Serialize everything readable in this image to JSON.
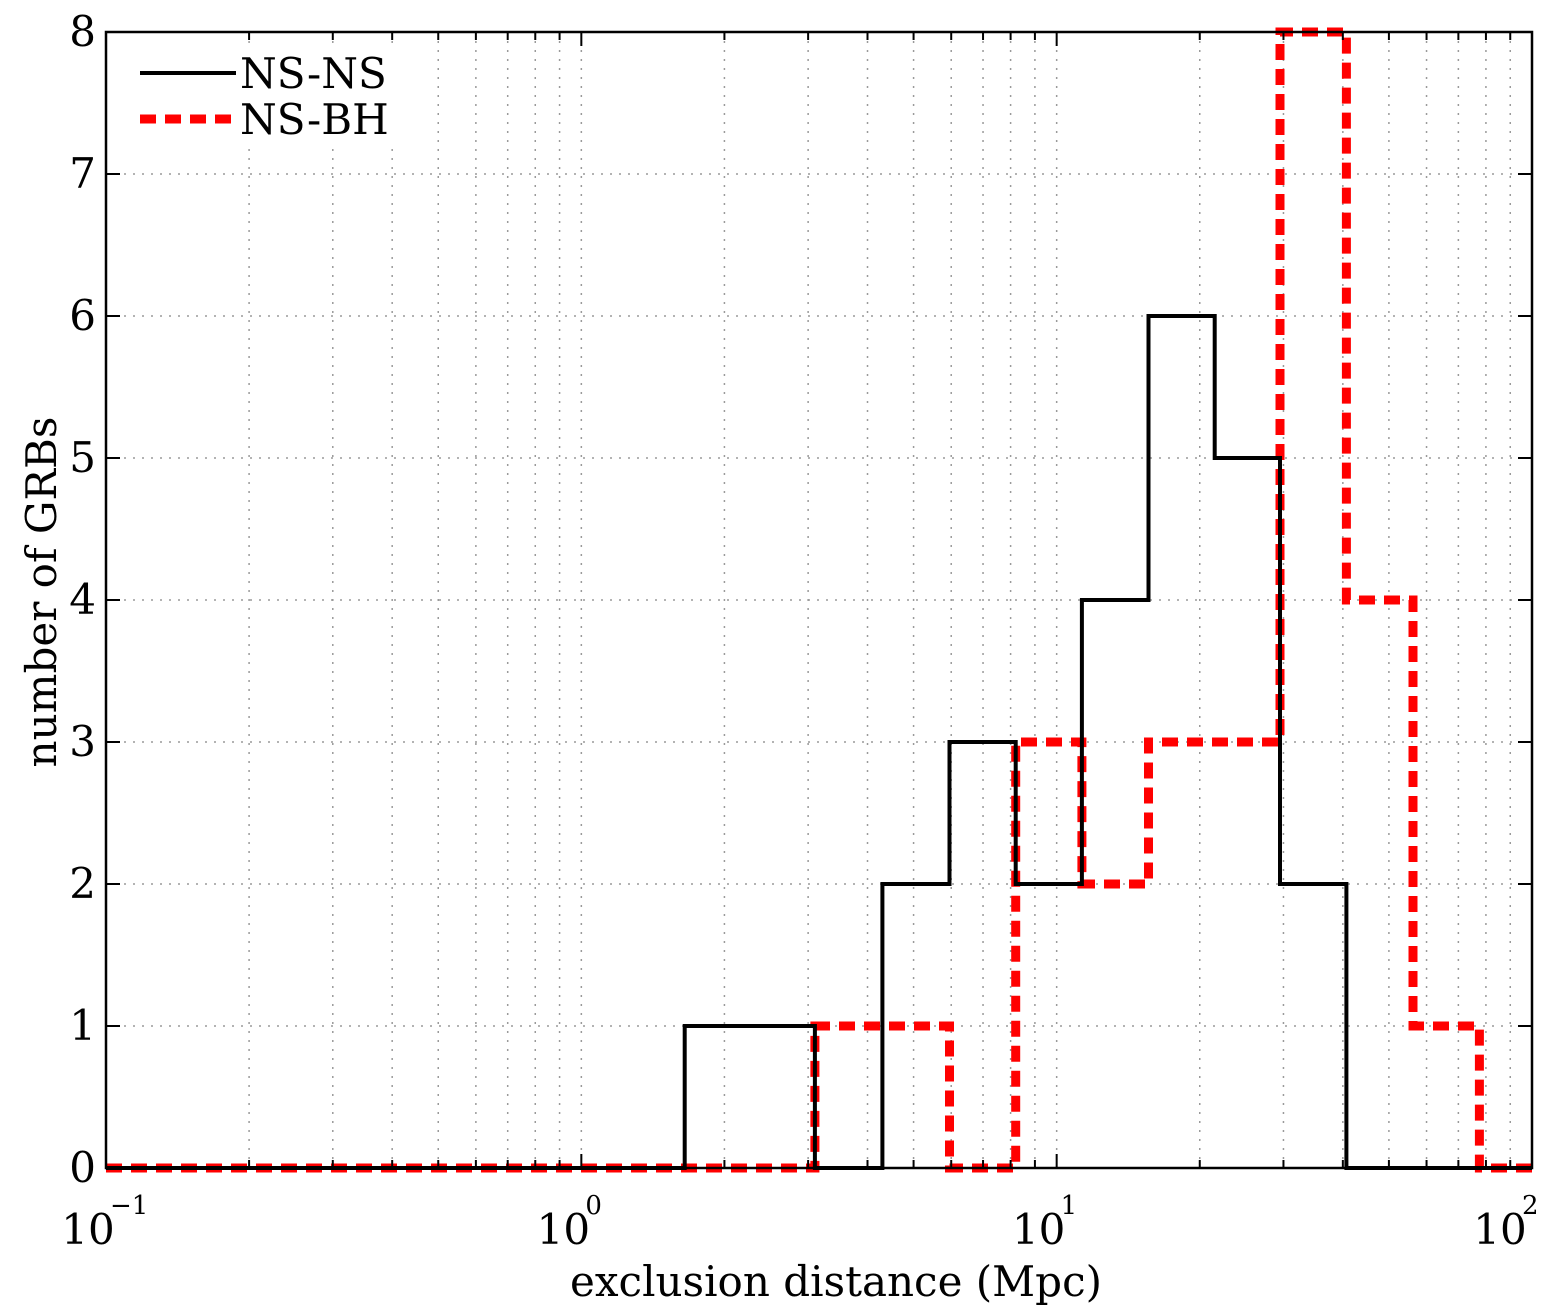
{
  "chart_data": {
    "type": "histogram",
    "xscale": "log",
    "xlim": [
      0.1,
      100
    ],
    "ylim": [
      0,
      8
    ],
    "grid": true,
    "legend_position": "top-left",
    "xlabel": "exclusion distance (Mpc)",
    "ylabel": "number of GRBs",
    "x_ticks": [
      {
        "base": "10",
        "exp": "−1",
        "value": 0.1
      },
      {
        "base": "10",
        "exp": "0",
        "value": 1
      },
      {
        "base": "10",
        "exp": "1",
        "value": 10
      },
      {
        "base": "10",
        "exp": "2",
        "value": 100
      }
    ],
    "y_ticks": [
      "0",
      "1",
      "2",
      "3",
      "4",
      "5",
      "6",
      "7",
      "8"
    ],
    "series": [
      {
        "name": "NS-NS",
        "color": "#000000",
        "line_style": "solid",
        "bins": [
          {
            "x0": 0.1,
            "x1": 1.65,
            "count": 0
          },
          {
            "x0": 1.65,
            "x1": 3.1,
            "count": 1
          },
          {
            "x0": 3.1,
            "x1": 4.3,
            "count": 0
          },
          {
            "x0": 4.3,
            "x1": 5.95,
            "count": 2
          },
          {
            "x0": 5.95,
            "x1": 8.2,
            "count": 3
          },
          {
            "x0": 8.2,
            "x1": 11.3,
            "count": 2
          },
          {
            "x0": 11.3,
            "x1": 15.6,
            "count": 4
          },
          {
            "x0": 15.6,
            "x1": 21.5,
            "count": 6
          },
          {
            "x0": 21.5,
            "x1": 29.5,
            "count": 5
          },
          {
            "x0": 29.5,
            "x1": 40.7,
            "count": 2
          },
          {
            "x0": 40.7,
            "x1": 100,
            "count": 0
          }
        ]
      },
      {
        "name": "NS-BH",
        "color": "#ff0000",
        "line_style": "dashed",
        "bins": [
          {
            "x0": 0.1,
            "x1": 3.1,
            "count": 0
          },
          {
            "x0": 3.1,
            "x1": 5.95,
            "count": 1
          },
          {
            "x0": 5.95,
            "x1": 8.2,
            "count": 0
          },
          {
            "x0": 8.2,
            "x1": 11.3,
            "count": 3
          },
          {
            "x0": 11.3,
            "x1": 15.6,
            "count": 2
          },
          {
            "x0": 15.6,
            "x1": 29.5,
            "count": 3
          },
          {
            "x0": 29.5,
            "x1": 40.7,
            "count": 8
          },
          {
            "x0": 40.7,
            "x1": 56.2,
            "count": 4
          },
          {
            "x0": 56.2,
            "x1": 77.5,
            "count": 1
          },
          {
            "x0": 77.5,
            "x1": 100,
            "count": 0
          }
        ]
      }
    ]
  }
}
